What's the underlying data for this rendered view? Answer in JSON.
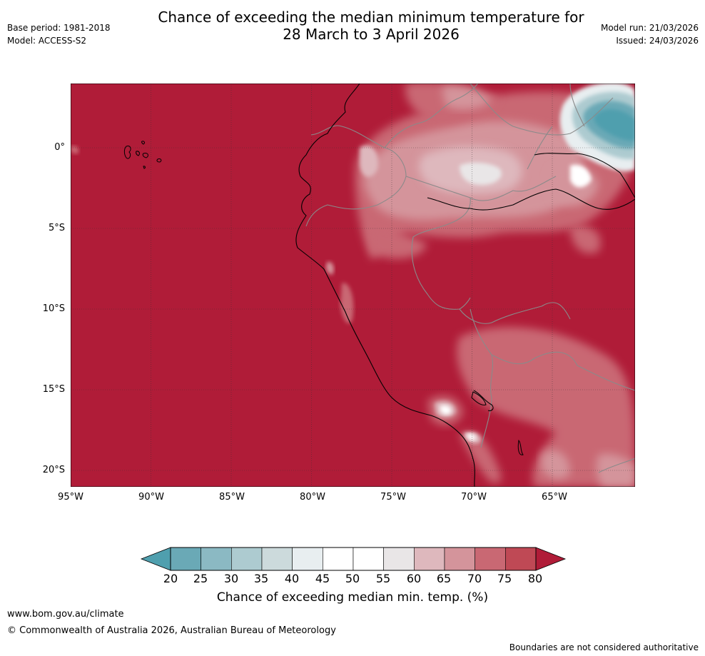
{
  "header": {
    "title_line1": "Chance of exceeding the median minimum temperature for",
    "title_line2": "28 March to 3 April 2026",
    "base_period": "Base period: 1981-2018",
    "model": "Model: ACCESS-S2",
    "model_run": "Model run: 21/03/2026",
    "issued": "Issued: 24/03/2026"
  },
  "map": {
    "lat_labels": [
      "0°",
      "5°S",
      "10°S",
      "15°S",
      "20°S"
    ],
    "lon_labels": [
      "95°W",
      "90°W",
      "85°W",
      "80°W",
      "75°W",
      "70°W",
      "65°W"
    ]
  },
  "colorbar": {
    "ticks": [
      "20",
      "25",
      "30",
      "35",
      "40",
      "45",
      "50",
      "55",
      "60",
      "65",
      "70",
      "75",
      "80"
    ],
    "colors": [
      "#6aa9b6",
      "#8bb9c3",
      "#adcbd0",
      "#ccdadc",
      "#e8eef0",
      "#ffffff",
      "#ffffff",
      "#e9e6e7",
      "#deb8bd",
      "#d4949b",
      "#c96873",
      "#bf4955"
    ],
    "under_color": "#4f9fae",
    "over_color": "#b01c38",
    "label": "Chance of exceeding median min. temp. (%)"
  },
  "footer": {
    "website": "www.bom.gov.au/climate",
    "copyright": "© Commonwealth of Australia 2026, Australian Bureau of Meteorology",
    "disclaimer": "Boundaries are not considered authoritative"
  }
}
